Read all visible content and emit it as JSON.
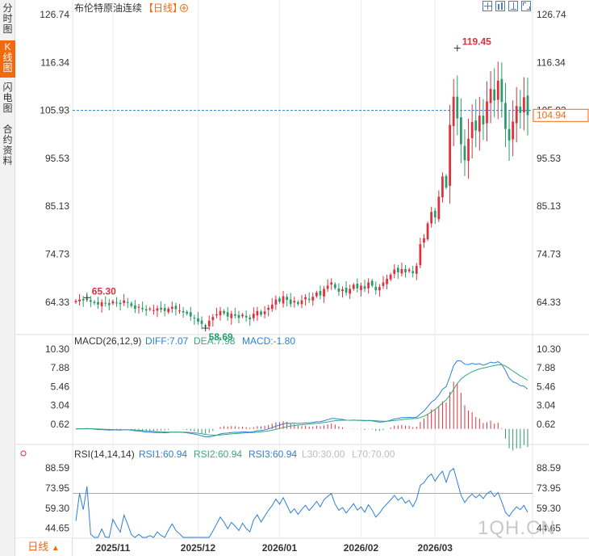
{
  "side_tabs": [
    {
      "label": "分时图",
      "active": false
    },
    {
      "label": "K线图",
      "active": true
    },
    {
      "label": "闪电图",
      "active": false
    },
    {
      "label": "合约资料",
      "active": false
    }
  ],
  "header": {
    "title": "布伦特原油连续",
    "period": "【日线】",
    "add_icon": "plus-circle-icon",
    "tools": [
      "expand-icon",
      "chart-type-icon",
      "draw-icon",
      "fullscreen-icon"
    ]
  },
  "bottom_period": {
    "label": "日线",
    "arrow": "▲"
  },
  "watermark": "1QH.CN",
  "colors": {
    "up": "#e0303c",
    "down": "#2a9b6a",
    "accent": "#f26a0f",
    "diff": "#2d7fd6",
    "dea": "#39a87f",
    "rsi": "#2d7fd6"
  },
  "chart_data": [
    {
      "type": "candlestick",
      "title": "布伦特原油连续",
      "ylim": [
        58.69,
        126.74
      ],
      "y_ticks": [
        "126.74",
        "116.34",
        "105.93",
        "95.53",
        "85.13",
        "74.73",
        "64.33"
      ],
      "x_ticks": [
        "2025/11",
        "2025/12",
        "2026/01",
        "2026/02",
        "2026/03"
      ],
      "last_price": "104.94",
      "reference_line": 105.93,
      "annotations": {
        "max": "119.45",
        "min": "58.69",
        "first_high": "65.30"
      },
      "closes": [
        64.6,
        64.9,
        64.7,
        65.0,
        64.4,
        64.1,
        63.8,
        64.3,
        64.0,
        63.7,
        64.5,
        64.2,
        63.9,
        64.7,
        64.2,
        63.5,
        62.9,
        63.3,
        62.8,
        62.5,
        62.9,
        62.6,
        63.0,
        62.7,
        62.4,
        62.9,
        63.3,
        62.8,
        62.5,
        62.1,
        61.8,
        61.2,
        60.8,
        60.1,
        59.6,
        59.2,
        60.3,
        61.1,
        61.7,
        62.4,
        61.9,
        61.2,
        61.8,
        61.4,
        60.9,
        61.6,
        61.0,
        60.6,
        61.8,
        62.4,
        61.6,
        62.3,
        63.1,
        63.8,
        64.9,
        64.4,
        65.6,
        64.8,
        63.9,
        64.6,
        63.9,
        64.7,
        65.4,
        64.8,
        65.5,
        66.4,
        65.8,
        67.2,
        67.9,
        68.6,
        67.4,
        66.6,
        67.1,
        66.4,
        67.2,
        68.1,
        67.3,
        67.9,
        67.2,
        68.6,
        67.9,
        66.9,
        67.6,
        68.6,
        69.4,
        70.3,
        71.4,
        70.8,
        71.5,
        70.8,
        71.4,
        70.6,
        72.2,
        76.9,
        78.2,
        81.4,
        83.9,
        82.7,
        87.2,
        91.6,
        89.2,
        102.8,
        108.9,
        104.2,
        98.6,
        95.1,
        99.8,
        103.4,
        101.6,
        104.8,
        102.9,
        107.9,
        110.6,
        108.1,
        112.4,
        107.8,
        101.9,
        99.4,
        103.5,
        106.9,
        105.4,
        108.8,
        104.9
      ],
      "macd": {
        "label": "MACD(26,12,9)",
        "diff": "DIFF:7.07",
        "dea": "DEA:7.98",
        "macd": "MACD:-1.80",
        "ylim": [
          -1.8,
          10.3
        ],
        "y_ticks": [
          "10.30",
          "7.88",
          "5.46",
          "3.04",
          "0.62"
        ]
      },
      "rsi": {
        "label": "RSI(14,14,14)",
        "rsi1": "RSI1:60.94",
        "rsi2": "RSI2:60.94",
        "rsi3": "RSI3:60.94",
        "l30": "L30:30.00",
        "l70": "L70:70.00",
        "ylim": [
          38.0,
          95.0
        ],
        "y_ticks": [
          "88.59",
          "73.95",
          "59.30",
          "44.65"
        ]
      }
    }
  ]
}
